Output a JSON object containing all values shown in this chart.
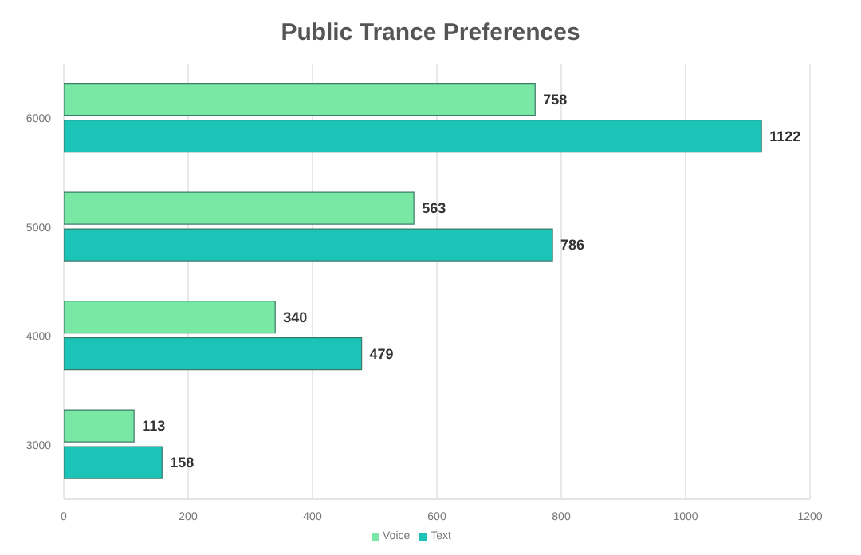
{
  "chart_data": {
    "type": "bar",
    "title": "Public Trance Preferences",
    "orientation": "horizontal",
    "categories": [
      "6000",
      "5000",
      "4000",
      "3000"
    ],
    "series": [
      {
        "name": "Voice",
        "color": "#78e8a4",
        "values": [
          758,
          563,
          340,
          113
        ]
      },
      {
        "name": "Text",
        "color": "#1cc4b8",
        "values": [
          1122,
          786,
          479,
          158
        ]
      }
    ],
    "xlim": [
      0,
      1200
    ],
    "xticks": [
      0,
      200,
      400,
      600,
      800,
      1000,
      1200
    ],
    "grid": "x",
    "legend": "bottom",
    "data_labels": true
  }
}
